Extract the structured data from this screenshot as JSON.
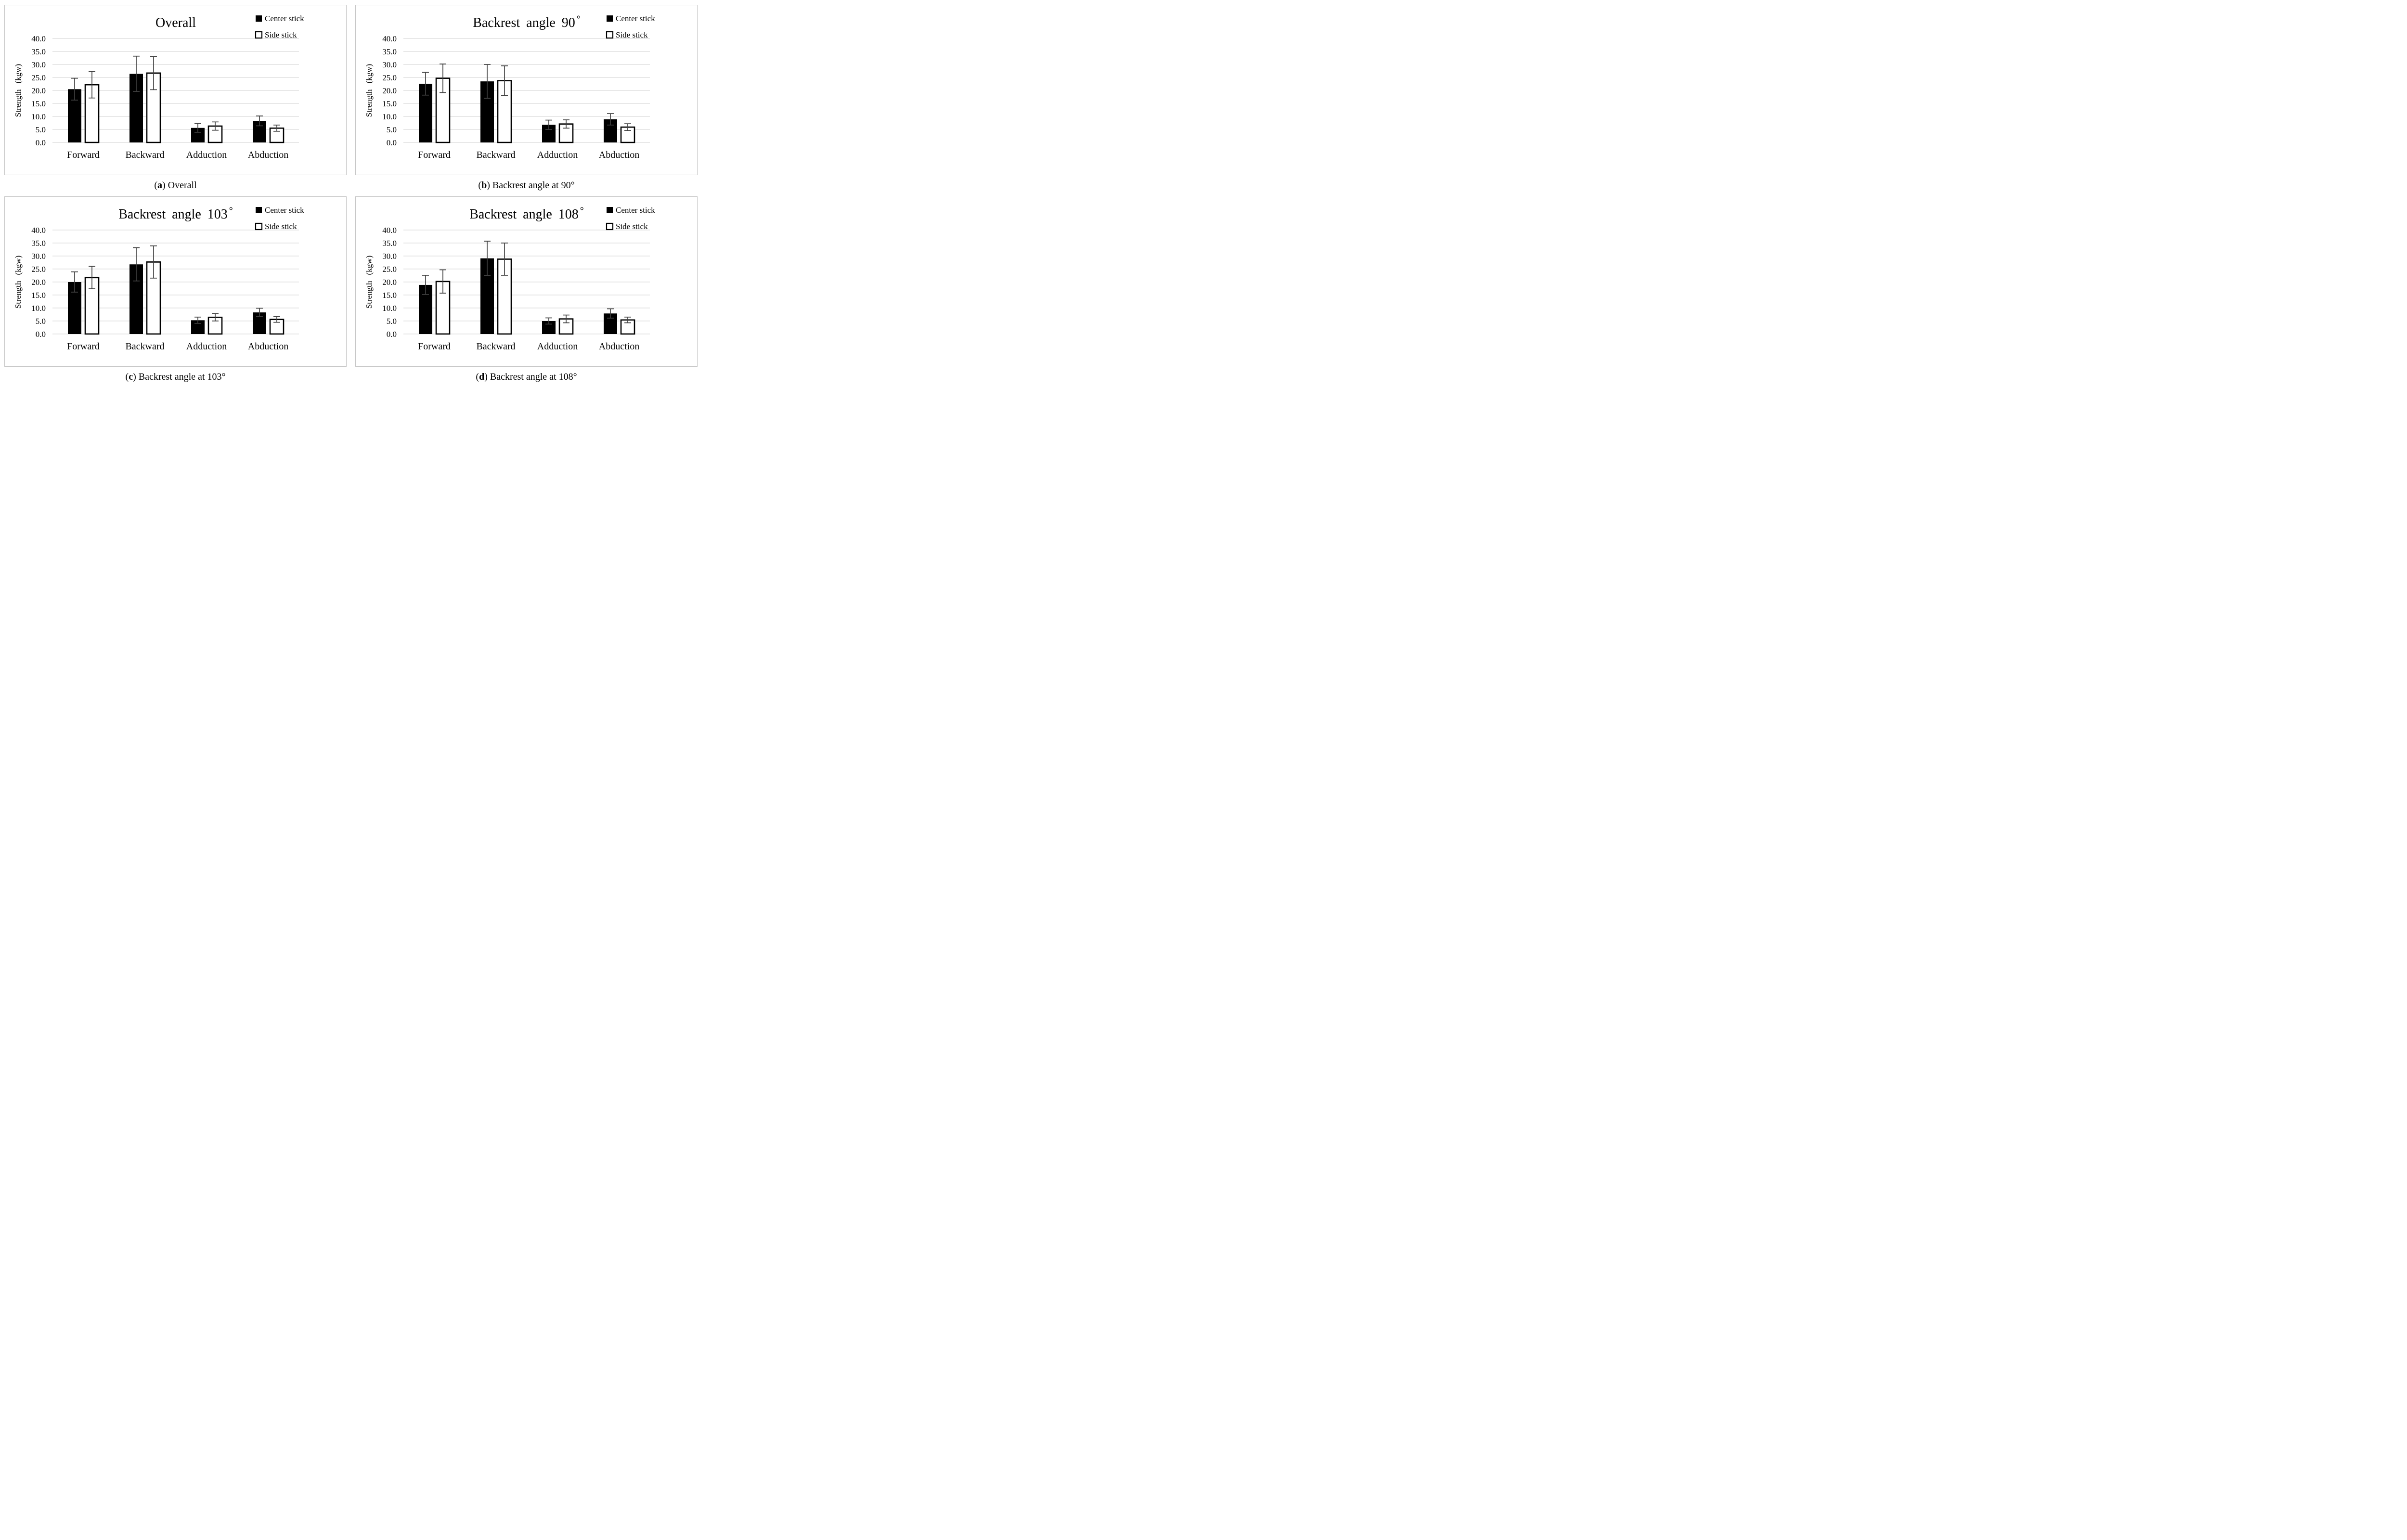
{
  "styles": {
    "bar_black": "#000000",
    "bar_white": "#ffffff",
    "bar_stroke": "#000000",
    "grid_color": "#d9d9d9",
    "error_color": "#404040",
    "panel_border": "#c6c6c6",
    "text_color": "#000000"
  },
  "punct": {
    "open": "(",
    "close": ")"
  },
  "axis": {
    "ytick_values": [
      0,
      5,
      10,
      15,
      20,
      25,
      30,
      35,
      40
    ],
    "ytick_labels": [
      "0.0",
      "5.0",
      "10.0",
      "15.0",
      "20.0",
      "25.0",
      "30.0",
      "35.0",
      "40.0"
    ]
  },
  "chart_data": [
    {
      "type": "bar",
      "panel": "a",
      "title": "Overall",
      "title_suffix": "",
      "caption": {
        "label": "a",
        "text": "Overall"
      },
      "ylabel": "Strength (kgw)",
      "ylim": [
        0,
        40
      ],
      "categories": [
        "Forward",
        "Backward",
        "Adduction",
        "Abduction"
      ],
      "series": [
        {
          "name": "Center stick",
          "fill": "black",
          "values": [
            20.5,
            26.4,
            5.6,
            8.3
          ],
          "errors": [
            4.2,
            6.8,
            1.7,
            1.9
          ]
        },
        {
          "name": "Side stick",
          "fill": "white",
          "values": [
            22.2,
            26.7,
            6.3,
            5.5
          ],
          "errors": [
            5.1,
            6.4,
            1.6,
            1.2
          ]
        }
      ],
      "legend_position": "top-right",
      "grid": "horizontal"
    },
    {
      "type": "bar",
      "panel": "b",
      "title": "Backrest angle 90",
      "title_suffix": "°",
      "caption": {
        "label": "b",
        "text": "Backrest angle at 90°"
      },
      "ylabel": "Strength (kgw)",
      "ylim": [
        0,
        40
      ],
      "categories": [
        "Forward",
        "Backward",
        "Adduction",
        "Abduction"
      ],
      "series": [
        {
          "name": "Center stick",
          "fill": "black",
          "values": [
            22.6,
            23.5,
            6.8,
            8.9
          ],
          "errors": [
            4.4,
            6.5,
            1.8,
            2.2
          ]
        },
        {
          "name": "Side stick",
          "fill": "white",
          "values": [
            24.7,
            23.8,
            7.1,
            5.9
          ],
          "errors": [
            5.5,
            5.7,
            1.6,
            1.3
          ]
        }
      ],
      "legend_position": "top-right",
      "grid": "horizontal"
    },
    {
      "type": "bar",
      "panel": "c",
      "title": "Backrest angle 103",
      "title_suffix": "°",
      "caption": {
        "label": "c",
        "text": "Backrest angle at 103°"
      },
      "ylabel": "Strength (kgw)",
      "ylim": [
        0,
        40
      ],
      "categories": [
        "Forward",
        "Backward",
        "Adduction",
        "Abduction"
      ],
      "series": [
        {
          "name": "Center stick",
          "fill": "black",
          "values": [
            20.0,
            26.8,
            5.3,
            8.3
          ],
          "errors": [
            3.9,
            6.4,
            1.2,
            1.6
          ]
        },
        {
          "name": "Side stick",
          "fill": "white",
          "values": [
            21.7,
            27.7,
            6.4,
            5.6
          ],
          "errors": [
            4.3,
            6.2,
            1.4,
            1.1
          ]
        }
      ],
      "legend_position": "top-right",
      "grid": "horizontal"
    },
    {
      "type": "bar",
      "panel": "d",
      "title": "Backrest angle 108",
      "title_suffix": "°",
      "caption": {
        "label": "d",
        "text": "Backrest angle at 108°"
      },
      "ylabel": "Strength (kgw)",
      "ylim": [
        0,
        40
      ],
      "categories": [
        "Forward",
        "Backward",
        "Adduction",
        "Abduction"
      ],
      "series": [
        {
          "name": "Center stick",
          "fill": "black",
          "values": [
            18.9,
            29.1,
            5.0,
            7.9
          ],
          "errors": [
            3.7,
            6.6,
            1.2,
            1.8
          ]
        },
        {
          "name": "Side stick",
          "fill": "white",
          "values": [
            20.2,
            28.8,
            5.8,
            5.4
          ],
          "errors": [
            4.5,
            6.2,
            1.5,
            1.1
          ]
        }
      ],
      "legend_position": "top-right",
      "grid": "horizontal"
    }
  ]
}
